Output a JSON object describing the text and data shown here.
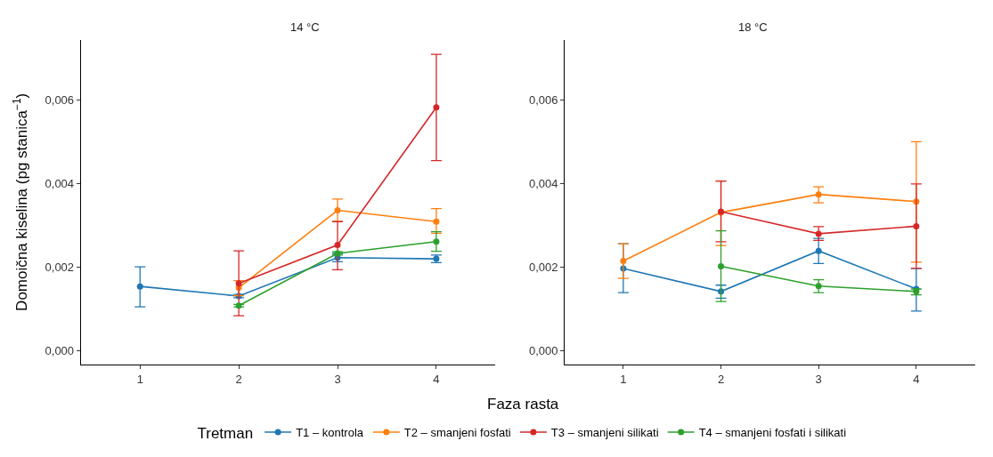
{
  "chart_data": [
    {
      "type": "line",
      "title": "14 °C",
      "xlabel": "Faza rasta",
      "ylabel": "Domoična kiselina (pg stanica$^{−1}$)",
      "legend_title": "Tretman",
      "legend": "bottom",
      "marker": "circle",
      "line_style": "solid",
      "xlim": [
        0.4,
        4.6
      ],
      "xticks": [
        1,
        2,
        3,
        4
      ],
      "ylim": [
        -0.00033,
        0.00744
      ],
      "yticks": [
        {
          "value": 0,
          "label": "0,000"
        },
        {
          "value": 0.002,
          "label": "0,002"
        },
        {
          "value": 0.004,
          "label": "0,004"
        },
        {
          "value": 0.006,
          "label": "0,006"
        }
      ],
      "series": [
        {
          "name": "T1 – kontrola",
          "color": "#1f77b4",
          "x": [
            1,
            2,
            3,
            4
          ],
          "values": [
            0.00154,
            0.00131,
            0.00223,
            0.0022
          ],
          "errors": [
            [
              0.00105,
              0.00201
            ],
            [
              0.00127,
              0.00135
            ],
            [
              0.00213,
              0.00233
            ],
            [
              0.00211,
              0.00229
            ]
          ]
        },
        {
          "name": "T2 – smanjeni fosfati",
          "color": "#ff7f0e",
          "x": [
            2,
            3,
            4
          ],
          "values": [
            0.00151,
            0.00336,
            0.00309
          ],
          "errors": [
            [
              0.00132,
              0.00168
            ],
            [
              0.00309,
              0.00363
            ],
            [
              0.00281,
              0.0034
            ]
          ]
        },
        {
          "name": "T3 – smanjeni silikati",
          "color": "#d62728",
          "x": [
            2,
            3,
            4
          ],
          "values": [
            0.00161,
            0.00253,
            0.00582
          ],
          "errors": [
            [
              0.00084,
              0.00239
            ],
            [
              0.00194,
              0.00309
            ],
            [
              0.00455,
              0.00709
            ]
          ]
        },
        {
          "name": "T4 – smanjeni fosfati i silikati",
          "color": "#2ca02c",
          "x": [
            2,
            3,
            4
          ],
          "values": [
            0.00108,
            0.00233,
            0.00261
          ],
          "errors": [
            [
              0.00105,
              0.00111
            ],
            [
              0.00229,
              0.00237
            ],
            [
              0.00238,
              0.00285
            ]
          ]
        }
      ]
    },
    {
      "type": "line",
      "title": "18 °C",
      "marker": "circle",
      "line_style": "solid",
      "xlim": [
        0.4,
        4.6
      ],
      "xticks": [
        1,
        2,
        3,
        4
      ],
      "ylim": [
        -0.00033,
        0.00744
      ],
      "yticks": [
        {
          "value": 0,
          "label": "0,000"
        },
        {
          "value": 0.002,
          "label": "0,002"
        },
        {
          "value": 0.004,
          "label": "0,004"
        },
        {
          "value": 0.006,
          "label": "0,006"
        }
      ],
      "series": [
        {
          "name": "T1 – kontrola",
          "color": "#1f77b4",
          "x": [
            1,
            2,
            3,
            4
          ],
          "values": [
            0.00197,
            0.00142,
            0.00239,
            0.00148
          ],
          "errors": [
            [
              0.00139,
              0.00256
            ],
            [
              0.00126,
              0.00157
            ],
            [
              0.00209,
              0.00269
            ],
            [
              0.00095,
              0.00197
            ]
          ]
        },
        {
          "name": "T2 – smanjeni fosfati",
          "color": "#ff7f0e",
          "x": [
            1,
            2,
            3,
            4
          ],
          "values": [
            0.00215,
            0.00331,
            0.00374,
            0.00357
          ],
          "errors": [
            [
              0.00173,
              0.00256
            ],
            [
              0.00252,
              0.00406
            ],
            [
              0.00354,
              0.00392
            ],
            [
              0.00212,
              0.005
            ]
          ]
        },
        {
          "name": "T3 – smanjeni silikati",
          "color": "#d62728",
          "x": [
            2,
            3,
            4
          ],
          "values": [
            0.00333,
            0.0028,
            0.00298
          ],
          "errors": [
            [
              0.00261,
              0.00406
            ],
            [
              0.00264,
              0.00297
            ],
            [
              0.00197,
              0.00399
            ]
          ]
        },
        {
          "name": "T4 – smanjeni fosfati i silikati",
          "color": "#2ca02c",
          "x": [
            2,
            3,
            4
          ],
          "values": [
            0.00202,
            0.00155,
            0.00142
          ],
          "errors": [
            [
              0.00118,
              0.00287
            ],
            [
              0.00139,
              0.0017
            ],
            [
              0.00134,
              0.00148
            ]
          ]
        }
      ]
    }
  ]
}
